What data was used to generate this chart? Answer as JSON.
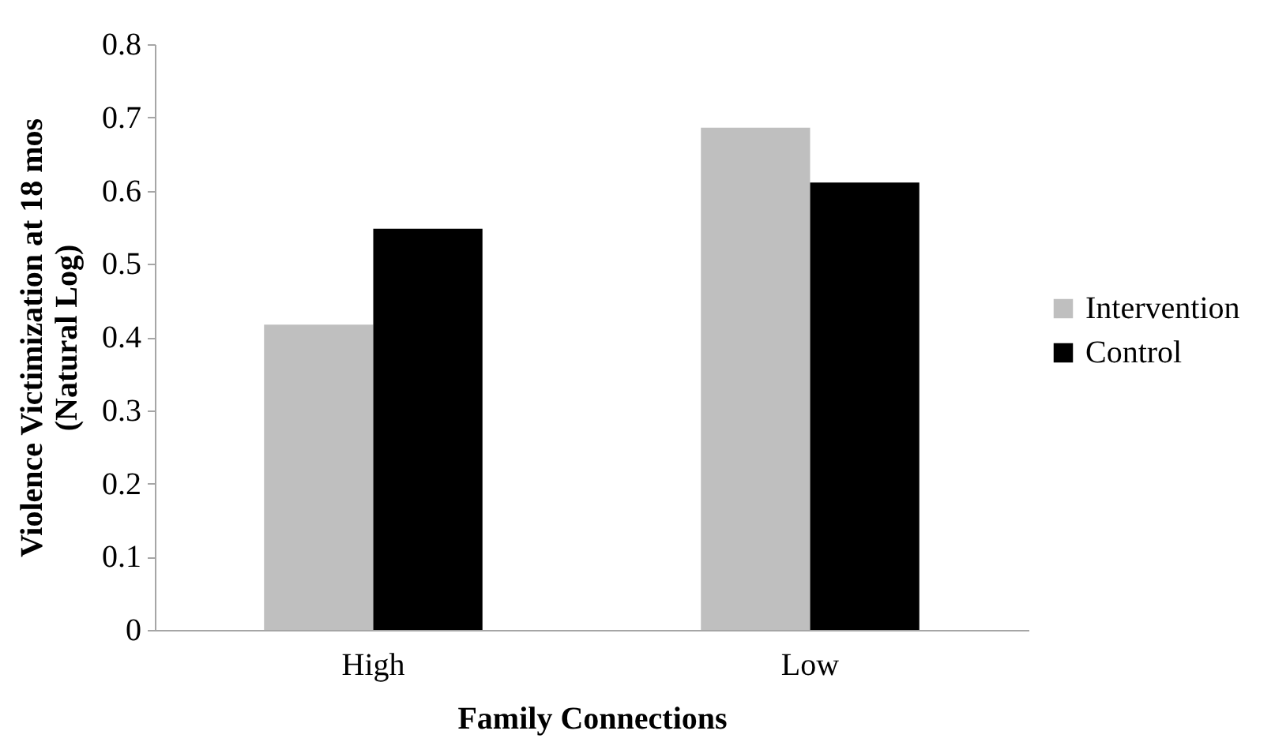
{
  "chart_data": {
    "type": "bar",
    "xlabel": "Family Connections",
    "ylabel": "Violence Victimization at 18 mos (Natural Log)",
    "categories": [
      "High",
      "Low"
    ],
    "series": [
      {
        "name": "Intervention",
        "color": "#bfbfbf",
        "values": [
          0.417,
          0.686
        ]
      },
      {
        "name": "Control",
        "color": "#000000",
        "values": [
          0.548,
          0.611
        ]
      }
    ],
    "ylim": [
      0,
      0.8
    ],
    "yticks": [
      0,
      0.1,
      0.2,
      0.3,
      0.4,
      0.5,
      0.6,
      0.7,
      0.8
    ],
    "grid": false,
    "legend": "right"
  }
}
